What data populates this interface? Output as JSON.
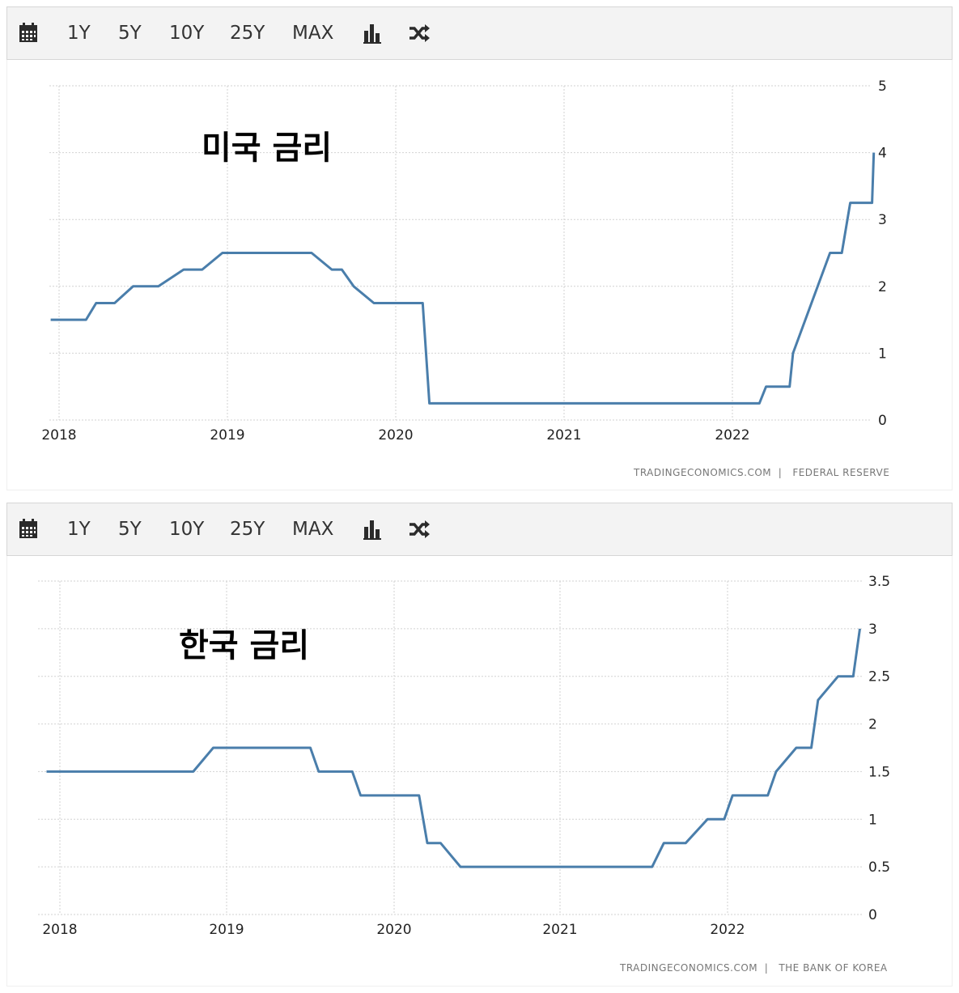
{
  "toolbar": {
    "calendar_icon": "calendar-icon",
    "ranges": [
      "1Y",
      "5Y",
      "10Y",
      "25Y",
      "MAX"
    ],
    "bar_icon": "bar-chart-icon",
    "shuffle_icon": "shuffle-icon"
  },
  "colors": {
    "line": "#4a7eab",
    "grid": "#d2d2d2",
    "toolbar_bg": "#f3f3f3"
  },
  "chart_data": [
    {
      "type": "line",
      "annotation": "미국 금리",
      "source_left": "TRADINGECONOMICS.COM",
      "source_right": "FEDERAL RESERVE",
      "x_ticks": [
        "2018",
        "2019",
        "2020",
        "2021",
        "2022"
      ],
      "y_ticks": [
        "0",
        "1",
        "2",
        "3",
        "4",
        "5"
      ],
      "ylim": [
        0,
        5
      ],
      "xlim": [
        2017.93,
        2022.85
      ],
      "grid": true,
      "series": [
        {
          "x": [
            2017.95,
            2018.16,
            2018.22,
            2018.33,
            2018.44,
            2018.59,
            2018.74,
            2018.85,
            2018.97,
            2019.5,
            2019.62,
            2019.68,
            2019.75,
            2019.87,
            2020.16,
            2020.2,
            2022.16,
            2022.2,
            2022.34,
            2022.36,
            2022.58,
            2022.65,
            2022.7,
            2022.83,
            2022.84
          ],
          "y": [
            1.5,
            1.5,
            1.75,
            1.75,
            2.0,
            2.0,
            2.25,
            2.25,
            2.5,
            2.5,
            2.25,
            2.25,
            2.0,
            1.75,
            1.75,
            0.25,
            0.25,
            0.5,
            0.5,
            1.0,
            2.5,
            2.5,
            3.25,
            3.25,
            4.0
          ]
        }
      ]
    },
    {
      "type": "line",
      "annotation": "한국 금리",
      "source_left": "TRADINGECONOMICS.COM",
      "source_right": "THE BANK OF KOREA",
      "x_ticks": [
        "2018",
        "2019",
        "2020",
        "2021",
        "2022"
      ],
      "y_ticks": [
        "0",
        "0.5",
        "1",
        "1.5",
        "2",
        "2.5",
        "3",
        "3.5"
      ],
      "ylim": [
        0,
        3.5
      ],
      "xlim": [
        2017.9,
        2022.85
      ],
      "grid": true,
      "series": [
        {
          "x": [
            2017.92,
            2018.8,
            2018.92,
            2019.5,
            2019.55,
            2019.75,
            2019.8,
            2020.15,
            2020.2,
            2020.28,
            2020.4,
            2021.55,
            2021.62,
            2021.75,
            2021.88,
            2021.98,
            2022.03,
            2022.24,
            2022.29,
            2022.41,
            2022.5,
            2022.54,
            2022.66,
            2022.75,
            2022.79
          ],
          "y": [
            1.5,
            1.5,
            1.75,
            1.75,
            1.5,
            1.5,
            1.25,
            1.25,
            0.75,
            0.75,
            0.5,
            0.5,
            0.75,
            0.75,
            1.0,
            1.0,
            1.25,
            1.25,
            1.5,
            1.75,
            1.75,
            2.25,
            2.5,
            2.5,
            3.0
          ]
        }
      ]
    }
  ]
}
